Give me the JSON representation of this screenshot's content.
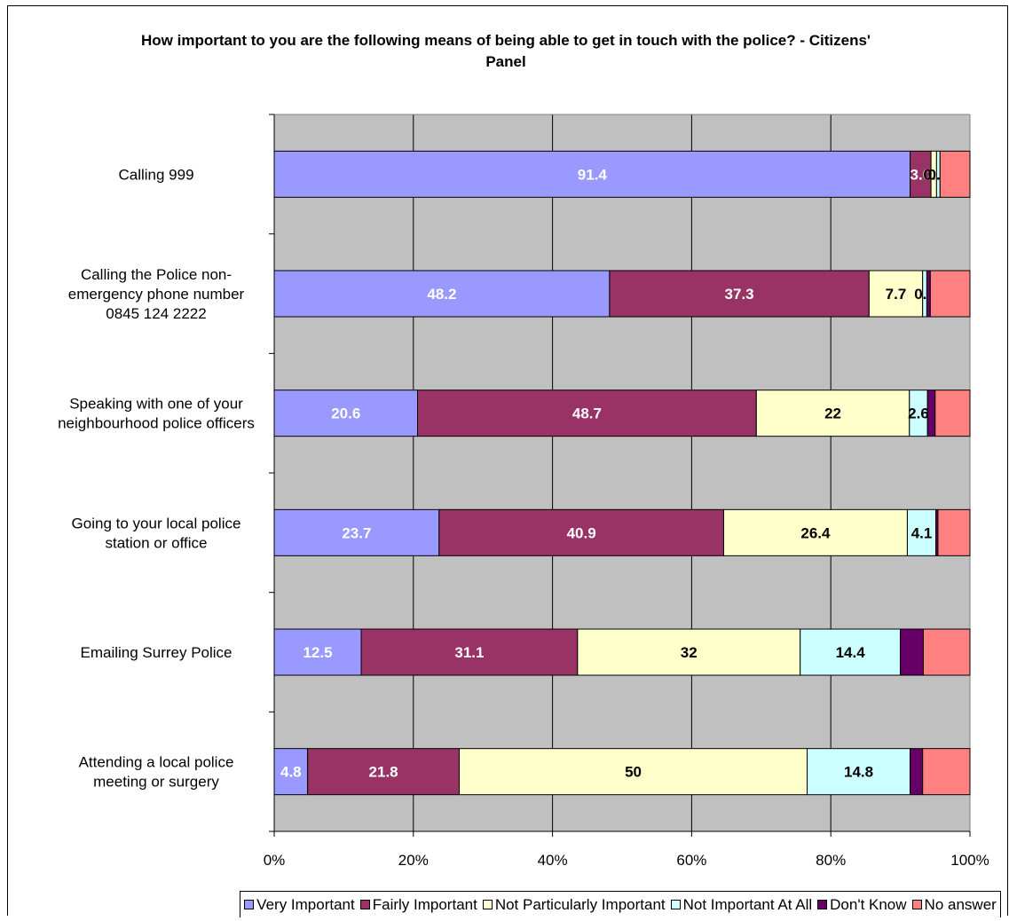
{
  "chart_data": {
    "type": "bar",
    "orientation": "horizontal",
    "stacked": true,
    "title": "How important to you are the following means of being able to get in touch with the police? - Citizens' Panel",
    "xlabel": "",
    "ylabel": "",
    "xlim": [
      0,
      100
    ],
    "x_ticks": [
      "0%",
      "20%",
      "40%",
      "60%",
      "80%",
      "100%"
    ],
    "grid": true,
    "legend_position": "bottom",
    "categories": [
      [
        "Calling 999"
      ],
      [
        "Calling the Police non-",
        "emergency phone number",
        "0845 124 2222"
      ],
      [
        "Speaking with one of your",
        "neighbourhood police officers"
      ],
      [
        "Going to your local police",
        "station or office"
      ],
      [
        "Emailing Surrey Police"
      ],
      [
        "Attending a local police",
        "meeting or surgery"
      ]
    ],
    "series": [
      {
        "name": "Very Important",
        "color": "#9999ff",
        "label_color": "#ffffff",
        "values": [
          91.4,
          48.2,
          20.6,
          23.7,
          12.5,
          4.8
        ],
        "labels": [
          "91.4",
          "48.2",
          "20.6",
          "23.7",
          "12.5",
          "4.8"
        ]
      },
      {
        "name": "Fairly Important",
        "color": "#993366",
        "label_color": "#ffffff",
        "values": [
          3.0,
          37.3,
          48.7,
          40.9,
          31.1,
          21.8
        ],
        "labels": [
          "3.0",
          "37.3",
          "48.7",
          "40.9",
          "31.1",
          "21.8"
        ]
      },
      {
        "name": "Not Particularly Important",
        "color": "#ffffcc",
        "label_color": "#000000",
        "values": [
          0.8,
          7.7,
          22.0,
          26.4,
          32.0,
          50.0
        ],
        "labels": [
          "0.8",
          "7.7",
          "22",
          "26.4",
          "32",
          "50"
        ]
      },
      {
        "name": "Not Important At All",
        "color": "#ccffff",
        "label_color": "#000000",
        "values": [
          0.5,
          0.6,
          2.6,
          4.1,
          14.4,
          14.8
        ],
        "labels": [
          "0.5",
          "0.6",
          "2.6",
          "4.1",
          "14.4",
          "14.8"
        ]
      },
      {
        "name": "Don't Know",
        "color": "#660066",
        "label_color": "#ffffff",
        "values": [
          0,
          0.5,
          1.1,
          0.3,
          3.3,
          1.8
        ],
        "labels": [
          "",
          "",
          "",
          "",
          "",
          ""
        ]
      },
      {
        "name": "No answer",
        "color": "#ff8080",
        "label_color": "#000000",
        "values": [
          4.3,
          5.7,
          5.0,
          4.6,
          6.7,
          6.8
        ],
        "labels": [
          "",
          "",
          "",
          "",
          "",
          ""
        ]
      }
    ]
  }
}
